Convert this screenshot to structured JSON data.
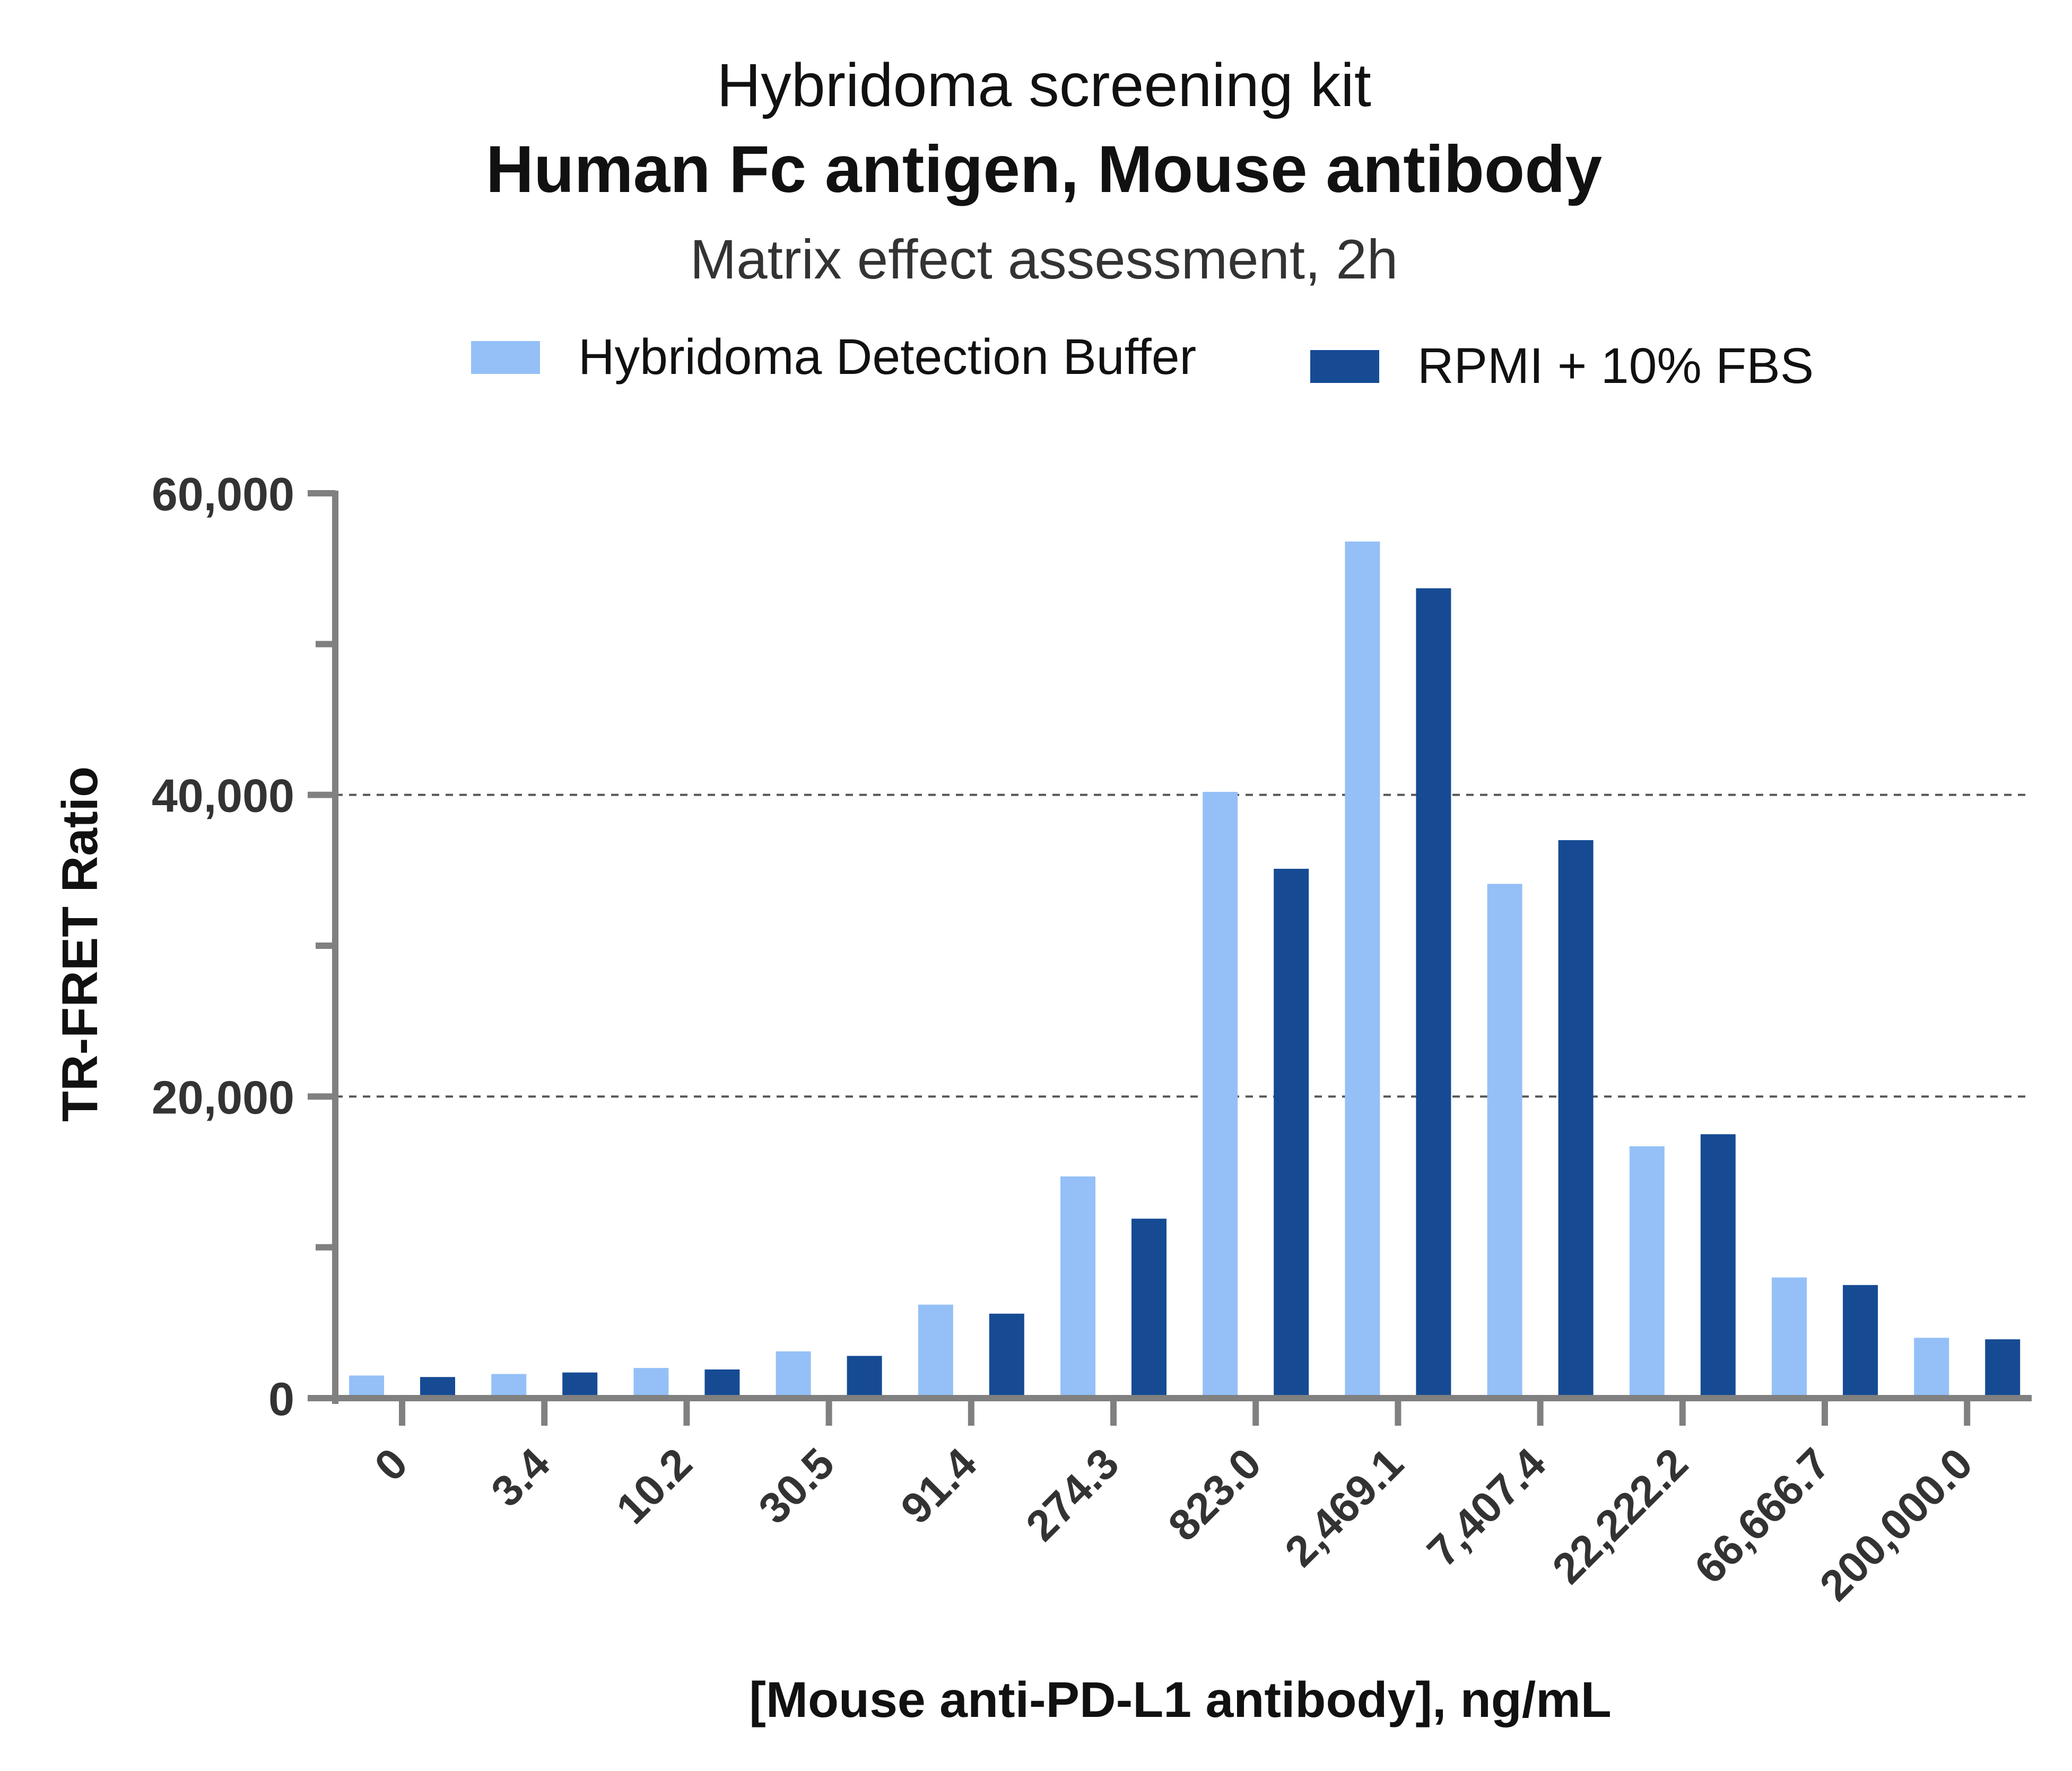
{
  "chart_data": {
    "type": "bar",
    "title": "Hybridoma screening kit",
    "subtitle": "Human Fc antigen, Mouse antibody",
    "subtitle2": "Matrix effect assessment, 2h",
    "xlabel": "[Mouse anti-PD-L1 antibody], ng/mL",
    "ylabel": "TR-FRET Ratio",
    "ylim": [
      0,
      60000
    ],
    "yticks": [
      0,
      20000,
      40000,
      60000
    ],
    "ytick_labels": [
      "0",
      "20,000",
      "40,000",
      "60,000"
    ],
    "grid": "horizontal dashed at 20,000 and 40,000",
    "legend_position": "top",
    "categories": [
      "0",
      "3.4",
      "10.2",
      "30.5",
      "91.4",
      "274.3",
      "823.0",
      "2,469.1",
      "7,407.4",
      "22,222.2",
      "66,666.7",
      "200,000.0"
    ],
    "series": [
      {
        "name": "Hybridoma Detection Buffer",
        "color": "#94c0f7",
        "values": [
          1500,
          1600,
          2000,
          3100,
          6200,
          14700,
          40200,
          56800,
          34100,
          16700,
          8000,
          4000
        ]
      },
      {
        "name": "RPMI + 10% FBS",
        "color": "#164b94",
        "values": [
          1400,
          1700,
          1900,
          2800,
          5600,
          11900,
          35100,
          53700,
          37000,
          17500,
          7500,
          3900
        ]
      }
    ]
  }
}
